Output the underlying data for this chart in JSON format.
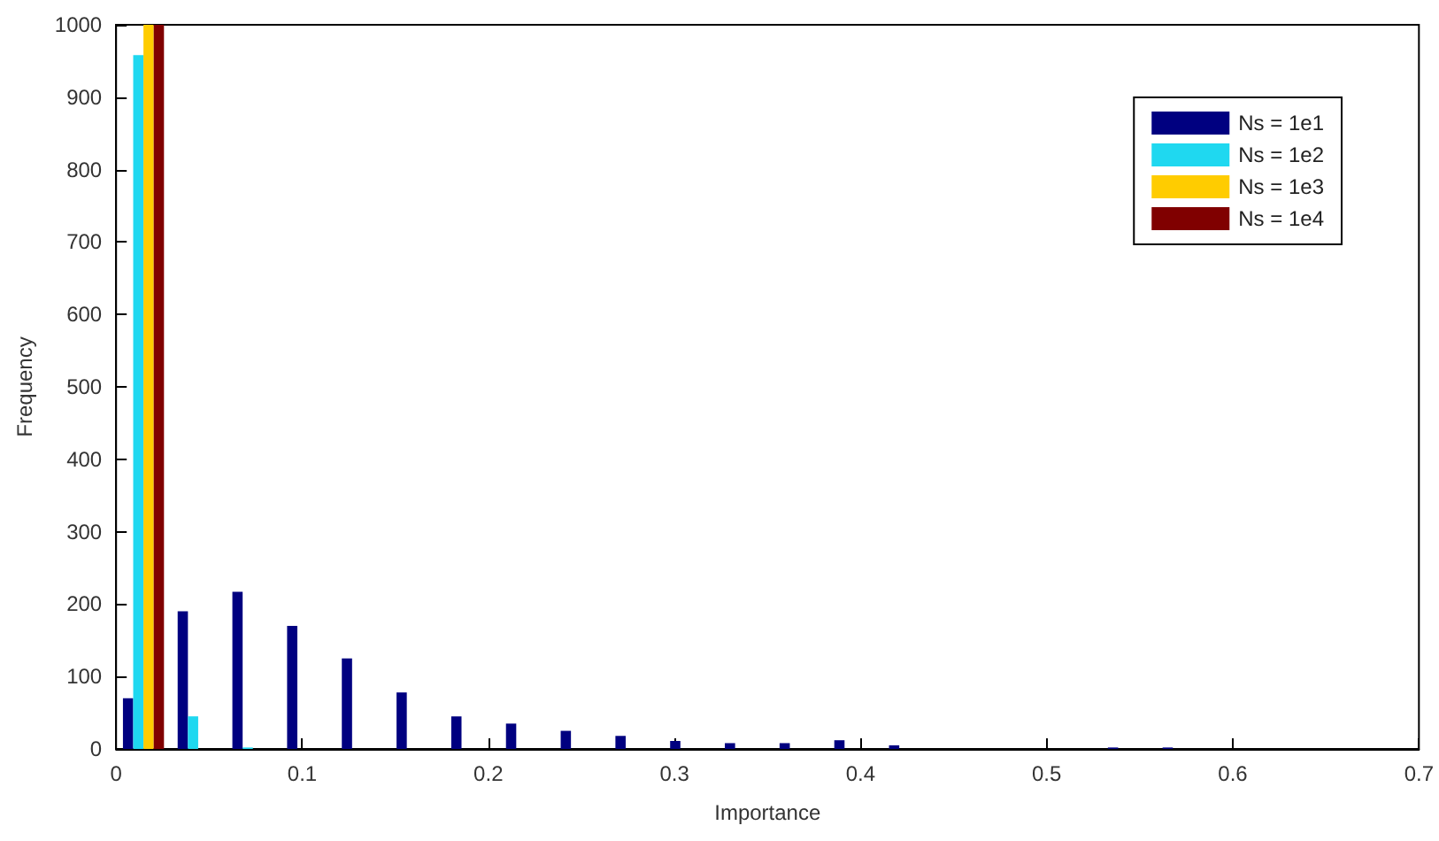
{
  "chart_data": {
    "type": "histogram",
    "xlabel": "Importance",
    "ylabel": "Frequency",
    "bins": [
      0,
      0.0294,
      0.0588,
      0.0882,
      0.1176,
      0.147,
      0.1764,
      0.2058,
      0.2352,
      0.2646,
      0.294,
      0.3234,
      0.3528,
      0.3822,
      0.4116,
      0.441,
      0.4704,
      0.4998,
      0.5292,
      0.5586,
      0.588
    ],
    "series": [
      {
        "name": "Ns = 1e1",
        "color": "#000080",
        "values": [
          70,
          190,
          217,
          170,
          125,
          78,
          45,
          35,
          25,
          18,
          11,
          8,
          8,
          12,
          5,
          0,
          0,
          0,
          2,
          2
        ]
      },
      {
        "name": "Ns = 1e2",
        "color": "#1fd8f0",
        "values": [
          958,
          45,
          2,
          0,
          0,
          0,
          0,
          0,
          0,
          0,
          0,
          0,
          0,
          0,
          0,
          0,
          0,
          0,
          0,
          0
        ]
      },
      {
        "name": "Ns = 1e3",
        "color": "#ffcc00",
        "values": [
          1000,
          0,
          0,
          0,
          0,
          0,
          0,
          0,
          0,
          0,
          0,
          0,
          0,
          0,
          0,
          0,
          0,
          0,
          0,
          0
        ]
      },
      {
        "name": "Ns = 1e4",
        "color": "#800000",
        "values": [
          1000,
          0,
          0,
          0,
          0,
          0,
          0,
          0,
          0,
          0,
          0,
          0,
          0,
          0,
          0,
          0,
          0,
          0,
          0,
          0
        ]
      }
    ],
    "xlim": [
      0,
      0.7
    ],
    "xticks": [
      0,
      0.1,
      0.2,
      0.3,
      0.4,
      0.5,
      0.6,
      0.7
    ],
    "ylim": [
      0,
      1000
    ],
    "yticks": [
      0,
      100,
      200,
      300,
      400,
      500,
      600,
      700,
      800,
      900,
      1000
    ],
    "grid": false,
    "legend": "top right"
  }
}
